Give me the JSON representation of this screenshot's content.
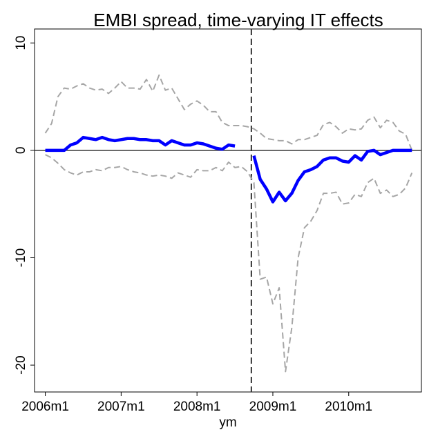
{
  "chart_data": {
    "type": "line",
    "title": "EMBI spread, time-varying IT effects",
    "xlabel": "ym",
    "x": [
      552,
      553,
      554,
      555,
      556,
      557,
      558,
      559,
      560,
      561,
      562,
      563,
      564,
      565,
      566,
      567,
      568,
      569,
      570,
      571,
      572,
      573,
      574,
      575,
      576,
      577,
      578,
      579,
      580,
      581,
      582,
      583,
      584,
      585,
      586,
      587,
      588,
      589,
      590,
      591,
      592,
      593,
      594,
      595,
      596,
      597,
      598,
      599,
      600,
      601,
      602,
      603,
      604,
      605,
      606,
      607,
      608,
      609,
      610
    ],
    "series": [
      {
        "color": "#a6a6a6",
        "dash": true,
        "values": [
          1.6,
          2.5,
          5.0,
          5.8,
          5.7,
          6.0,
          6.2,
          5.8,
          5.6,
          5.7,
          5.3,
          5.8,
          6.4,
          5.8,
          5.8,
          5.7,
          6.6,
          5.5,
          7.0,
          5.6,
          5.8,
          4.8,
          3.8,
          4.3,
          4.6,
          4.2,
          3.6,
          3.6,
          2.6,
          2.3,
          2.3,
          2.3,
          2.2,
          2.0,
          1.6,
          1.1,
          1.0,
          0.9,
          0.9,
          0.6,
          1.0,
          1.0,
          1.2,
          1.4,
          2.4,
          2.6,
          2.2,
          1.6,
          2.0,
          1.9,
          2.0,
          2.8,
          3.1,
          2.1,
          2.8,
          2.6,
          1.8,
          1.5,
          0
        ]
      },
      {
        "color": "#a6a6a6",
        "dash": true,
        "values": [
          -0.4,
          -0.7,
          -1.2,
          -1.8,
          -2.1,
          -2.3,
          -2.0,
          -2.0,
          -1.8,
          -1.9,
          -1.6,
          -1.6,
          -1.5,
          -1.8,
          -2.0,
          -2.1,
          -2.3,
          -2.4,
          -2.3,
          -2.4,
          -2.6,
          -2.1,
          -2.3,
          -2.5,
          -1.8,
          -1.9,
          -1.9,
          -1.6,
          -1.9,
          -1.1,
          -1.6,
          -1.5,
          -2.0,
          -3.0,
          -12.0,
          -11.8,
          -14.3,
          -12.8,
          -20.6,
          -16.5,
          -10.0,
          -7.2,
          -6.6,
          -5.6,
          -4.0,
          -4.0,
          -3.9,
          -5.0,
          -4.9,
          -4.1,
          -4.3,
          -3.0,
          -2.6,
          -4.0,
          -3.7,
          -4.3,
          -4.1,
          -3.5,
          -2.1
        ]
      },
      {
        "color": "#0000ff",
        "dash": false,
        "values": [
          0,
          0,
          0,
          0,
          0.5,
          0.7,
          1.2,
          1.1,
          1.0,
          1.2,
          1.0,
          0.9,
          1.0,
          1.1,
          1.1,
          1.0,
          1.0,
          0.9,
          0.9,
          0.5,
          0.9,
          0.7,
          0.5,
          0.5,
          0.7,
          0.6,
          0.4,
          0.2,
          0.1,
          0.5,
          0.4,
          null,
          null,
          -0.5,
          -2.7,
          -3.6,
          -4.8,
          -3.9,
          -4.7,
          -4.0,
          -2.8,
          -2.0,
          -1.8,
          -1.5,
          -0.9,
          -0.7,
          -0.7,
          -1.0,
          -1.1,
          -0.5,
          -0.9,
          -0.1,
          0,
          -0.4,
          -0.2,
          0,
          0,
          0,
          0
        ]
      }
    ],
    "hline": 0,
    "vline": 584.6,
    "xlim": [
      550.3,
      611.5
    ],
    "ylim": [
      -22.5,
      11.3
    ],
    "yticks": [
      -20,
      -10,
      0,
      10
    ],
    "xticks": [
      {
        "value": 552,
        "label": "2006m1"
      },
      {
        "value": 564,
        "label": "2007m1"
      },
      {
        "value": 576,
        "label": "2008m1"
      },
      {
        "value": 588,
        "label": "2009m1"
      },
      {
        "value": 600,
        "label": "2010m1"
      }
    ]
  }
}
